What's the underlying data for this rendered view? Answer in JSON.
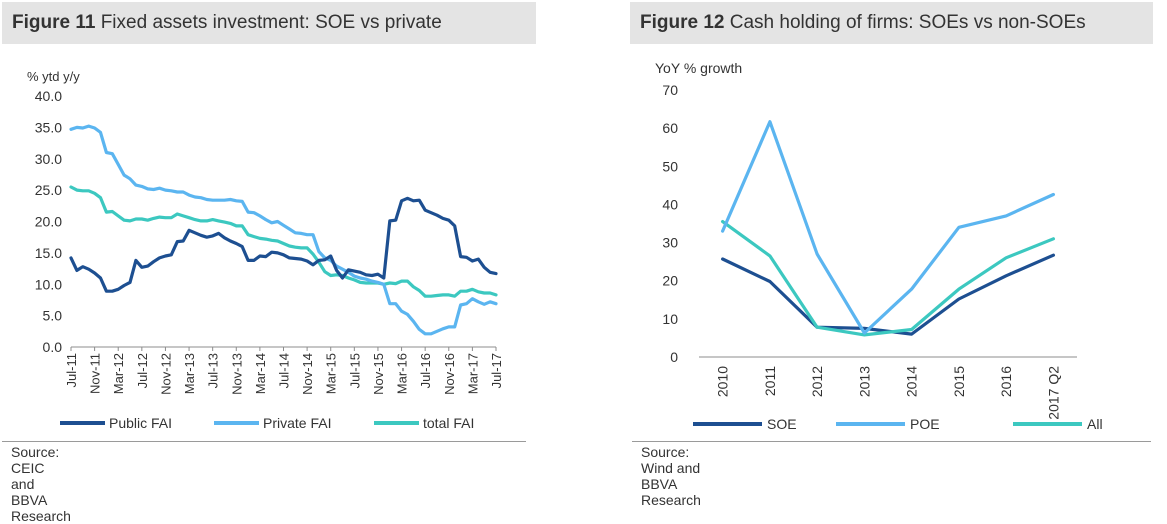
{
  "figures": [
    {
      "number": "Figure 11",
      "title": "Fixed assets investment: SOE vs private",
      "source": "Source: CEIC and BBVA Research"
    },
    {
      "number": "Figure 12",
      "title": "Cash holding of firms: SOEs vs non-SOEs",
      "source": "Source: Wind and BBVA Research"
    }
  ],
  "chart_data": [
    {
      "type": "line",
      "title": "Fixed assets investment: SOE vs private",
      "ylabel": "% ytd  y/y",
      "xlabel": "",
      "ylim": [
        0,
        40
      ],
      "yticks": [
        "0.0",
        "5.0",
        "10.0",
        "15.0",
        "20.0",
        "25.0",
        "30.0",
        "35.0",
        "40.0"
      ],
      "tick_labels": [
        "Jul-11",
        "Nov-11",
        "Mar-12",
        "Jul-12",
        "Nov-12",
        "Mar-13",
        "Jul-13",
        "Nov-13",
        "Mar-14",
        "Jul-14",
        "Nov-14",
        "Mar-15",
        "Jul-15",
        "Nov-15",
        "Mar-16",
        "Jul-16",
        "Nov-16",
        "Mar-17",
        "Jul-17"
      ],
      "x_start_month": "Jul-11",
      "legend_position": "bottom",
      "series": [
        {
          "name": "Public FAI",
          "color": "#1d4f91",
          "values": [
            14.2,
            12.2,
            12.8,
            12.4,
            11.8,
            11.0,
            8.9,
            8.9,
            9.2,
            9.8,
            10.3,
            13.8,
            12.7,
            12.9,
            13.6,
            14.2,
            14.5,
            14.7,
            16.8,
            16.9,
            18.6,
            18.2,
            17.8,
            17.5,
            17.7,
            18.1,
            17.4,
            16.9,
            16.5,
            16.0,
            13.8,
            13.8,
            14.5,
            14.4,
            15.1,
            15.0,
            14.7,
            14.2,
            14.1,
            14.0,
            13.7,
            13.1,
            13.8,
            13.9,
            14.5,
            12.2,
            11.0,
            12.3,
            12.1,
            11.9,
            11.5,
            11.4,
            11.6,
            11.0,
            20.1,
            20.2,
            23.3,
            23.7,
            23.3,
            23.4,
            21.8,
            21.4,
            21.0,
            20.5,
            20.2,
            19.3,
            14.4,
            14.3,
            13.7,
            14.0,
            12.7,
            11.9,
            11.7
          ]
        },
        {
          "name": "Private FAI",
          "color": "#5bb5f0",
          "values": [
            34.7,
            35.0,
            34.9,
            35.2,
            34.9,
            34.2,
            31.0,
            30.8,
            29.1,
            27.4,
            26.8,
            25.8,
            25.6,
            25.2,
            25.1,
            25.3,
            25.0,
            24.9,
            24.7,
            24.7,
            24.2,
            23.9,
            23.8,
            23.5,
            23.4,
            23.4,
            23.4,
            23.5,
            23.3,
            23.2,
            21.5,
            21.4,
            20.9,
            20.3,
            19.8,
            20.0,
            19.4,
            18.8,
            18.2,
            18.1,
            17.9,
            17.9,
            15.2,
            14.2,
            13.8,
            12.9,
            12.4,
            11.9,
            11.3,
            11.0,
            10.8,
            10.5,
            10.3,
            10.0,
            6.9,
            6.9,
            5.7,
            5.2,
            4.1,
            2.8,
            2.1,
            2.1,
            2.5,
            2.9,
            3.2,
            3.2,
            6.7,
            6.9,
            7.7,
            7.2,
            6.8,
            7.2,
            6.9
          ]
        },
        {
          "name": "total FAI",
          "color": "#3cc8c0",
          "values": [
            25.5,
            25.0,
            24.9,
            24.9,
            24.5,
            23.8,
            21.5,
            21.6,
            20.9,
            20.2,
            20.1,
            20.4,
            20.4,
            20.2,
            20.5,
            20.7,
            20.6,
            20.6,
            21.2,
            20.9,
            20.6,
            20.3,
            20.1,
            20.1,
            20.3,
            20.1,
            19.9,
            19.7,
            19.3,
            19.3,
            17.9,
            17.6,
            17.3,
            17.2,
            17.0,
            16.9,
            16.5,
            16.1,
            15.9,
            15.8,
            15.8,
            14.8,
            13.5,
            12.0,
            11.4,
            11.5,
            11.4,
            11.0,
            10.7,
            10.3,
            10.2,
            10.2,
            10.2,
            10.0,
            10.2,
            10.1,
            10.5,
            10.5,
            9.6,
            9.0,
            8.1,
            8.1,
            8.2,
            8.3,
            8.3,
            8.1,
            8.9,
            8.9,
            9.2,
            8.8,
            8.6,
            8.6,
            8.3
          ]
        }
      ]
    },
    {
      "type": "line",
      "title": "Cash holding of firms: SOEs vs non-SOEs",
      "ylabel": "YoY % growth",
      "xlabel": "",
      "ylim": [
        0,
        70
      ],
      "yticks": [
        "0",
        "10",
        "20",
        "30",
        "40",
        "50",
        "60",
        "70"
      ],
      "categories": [
        "2010",
        "2011",
        "2012",
        "2013",
        "2014",
        "2015",
        "2016",
        "2017 Q2"
      ],
      "legend_position": "bottom",
      "series": [
        {
          "name": "SOE",
          "color": "#1d4f91",
          "values": [
            25.7,
            19.8,
            7.8,
            7.5,
            6.0,
            15.2,
            21.3,
            26.7
          ]
        },
        {
          "name": "POE",
          "color": "#5bb5f0",
          "values": [
            33.0,
            61.7,
            27.0,
            6.3,
            17.8,
            34.0,
            37.0,
            42.6
          ]
        },
        {
          "name": "All",
          "color": "#3cc8c0",
          "values": [
            35.5,
            26.5,
            7.8,
            5.8,
            7.2,
            17.8,
            26.0,
            31.0
          ]
        }
      ]
    }
  ]
}
